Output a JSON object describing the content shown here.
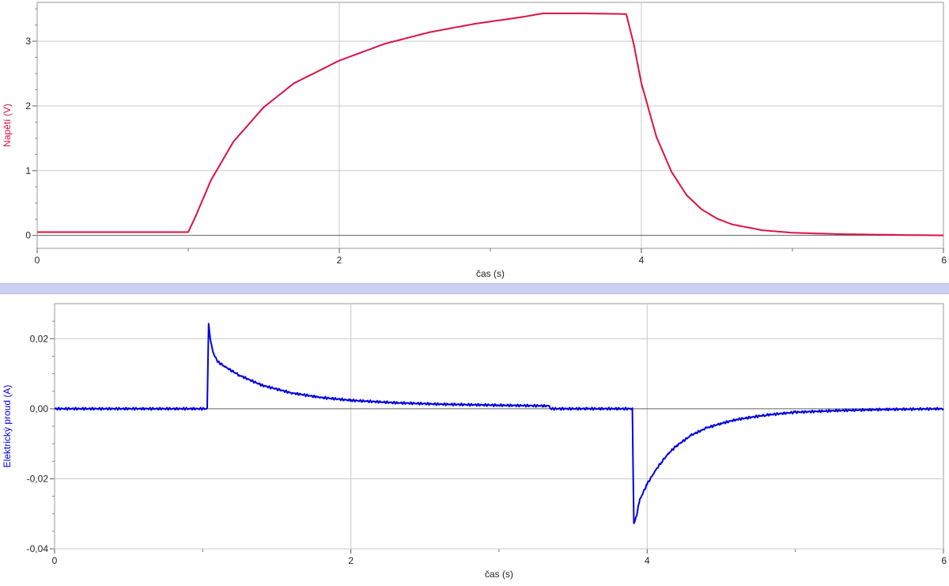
{
  "chart_data": [
    {
      "type": "line",
      "title": "",
      "xlabel": "čas (s)",
      "ylabel": "Napětí (V)",
      "xlim": [
        0,
        6
      ],
      "ylim": [
        -0.2,
        3.6
      ],
      "x_ticks": [
        "0",
        "2",
        "4",
        "6"
      ],
      "y_ticks": [
        "0",
        "1",
        "2",
        "3"
      ],
      "grid": true,
      "color": "#dd1144",
      "series": [
        {
          "x": [
            0,
            1.0,
            1.05,
            1.15,
            1.3,
            1.5,
            1.7,
            2.0,
            2.3,
            2.6,
            2.9,
            3.2,
            3.35,
            3.6,
            3.9,
            3.95,
            4.0,
            4.1,
            4.2,
            4.3,
            4.4,
            4.5,
            4.6,
            4.8,
            5.0,
            5.3,
            5.6,
            6.0
          ],
          "y": [
            0.05,
            0.05,
            0.3,
            0.85,
            1.45,
            1.98,
            2.35,
            2.7,
            2.96,
            3.14,
            3.27,
            3.37,
            3.43,
            3.43,
            3.42,
            2.95,
            2.35,
            1.52,
            0.98,
            0.62,
            0.4,
            0.26,
            0.17,
            0.08,
            0.04,
            0.02,
            0.01,
            0.0
          ]
        }
      ]
    },
    {
      "type": "line",
      "title": "",
      "xlabel": "čas (s)",
      "ylabel": "Elektrický proud (A)",
      "xlim": [
        0,
        6
      ],
      "ylim": [
        -0.04,
        0.03
      ],
      "x_ticks": [
        "0",
        "2",
        "4",
        "6"
      ],
      "y_ticks": [
        "-0,04",
        "-0,02",
        "0,00",
        "0,02"
      ],
      "grid": true,
      "color": "#0000dd",
      "series": [
        {
          "x": [
            0,
            1.03,
            1.04,
            1.05,
            1.07,
            1.1,
            1.15,
            1.25,
            1.4,
            1.6,
            1.8,
            2.0,
            2.3,
            2.6,
            3.0,
            3.34,
            3.35,
            3.6,
            3.9,
            3.91,
            3.92,
            3.95,
            4.0,
            4.05,
            4.1,
            4.15,
            4.2,
            4.3,
            4.4,
            4.5,
            4.6,
            4.8,
            5.0,
            5.3,
            5.6,
            6.0
          ],
          "y": [
            0.0,
            0.0,
            0.024,
            0.02,
            0.016,
            0.0135,
            0.012,
            0.0095,
            0.0067,
            0.0045,
            0.0032,
            0.0024,
            0.0017,
            0.0013,
            0.001,
            0.0008,
            0.0,
            0.0,
            0.0,
            -0.033,
            -0.032,
            -0.026,
            -0.0215,
            -0.018,
            -0.015,
            -0.0125,
            -0.0105,
            -0.0075,
            -0.0055,
            -0.0042,
            -0.0031,
            -0.0018,
            -0.001,
            -0.0005,
            -0.0002,
            0.0
          ]
        }
      ]
    }
  ]
}
